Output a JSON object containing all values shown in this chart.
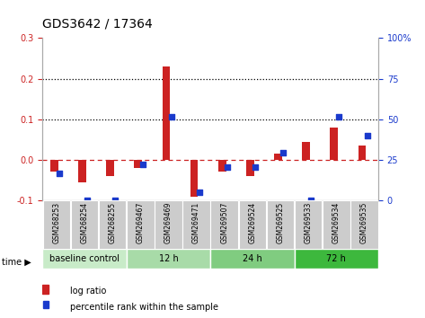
{
  "title": "GDS3642 / 17364",
  "samples": [
    "GSM268253",
    "GSM268254",
    "GSM268255",
    "GSM269467",
    "GSM269469",
    "GSM269471",
    "GSM269507",
    "GSM269524",
    "GSM269525",
    "GSM269533",
    "GSM269534",
    "GSM269535"
  ],
  "log_ratio": [
    -0.03,
    -0.055,
    -0.04,
    -0.02,
    0.23,
    -0.09,
    -0.03,
    -0.04,
    0.015,
    0.045,
    0.08,
    0.035
  ],
  "percentile_rank": [
    16.5,
    0.0,
    0.0,
    22.0,
    51.5,
    5.0,
    20.5,
    20.5,
    29.5,
    0.0,
    51.5,
    40.0
  ],
  "ylim_left": [
    -0.1,
    0.3
  ],
  "ylim_right": [
    0,
    100
  ],
  "yticks_left": [
    -0.1,
    0.0,
    0.1,
    0.2,
    0.3
  ],
  "yticks_right": [
    0,
    25,
    50,
    75,
    100
  ],
  "bar_color": "#cc2222",
  "dot_color": "#1a3acc",
  "time_groups": [
    {
      "label": "baseline control",
      "start": 0,
      "end": 3
    },
    {
      "label": "12 h",
      "start": 3,
      "end": 6
    },
    {
      "label": "24 h",
      "start": 6,
      "end": 9
    },
    {
      "label": "72 h",
      "start": 9,
      "end": 12
    }
  ],
  "time_colors": [
    "#c8ebc8",
    "#a8dba8",
    "#80cc80",
    "#3db83d"
  ],
  "legend_bar_label": "log ratio",
  "legend_dot_label": "percentile rank within the sample",
  "dotted_line_color": "#000000",
  "dashed_line_color": "#cc2222",
  "bg_color": "#ffffff",
  "tick_label_fontsize": 7,
  "title_fontsize": 10,
  "sample_bg": "#cccccc"
}
